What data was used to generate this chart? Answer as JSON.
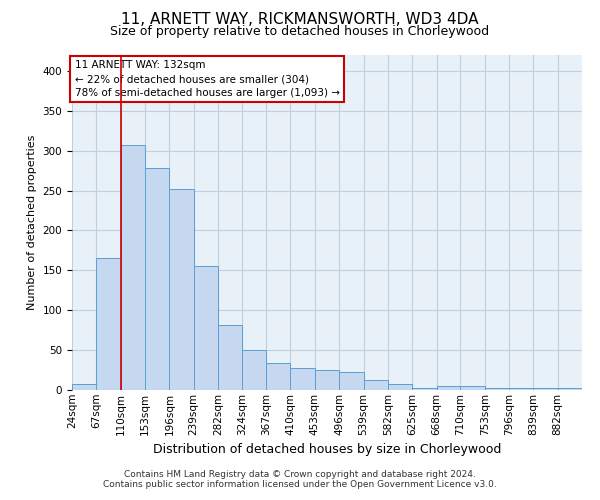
{
  "title": "11, ARNETT WAY, RICKMANSWORTH, WD3 4DA",
  "subtitle": "Size of property relative to detached houses in Chorleywood",
  "xlabel": "Distribution of detached houses by size in Chorleywood",
  "ylabel": "Number of detached properties",
  "footer_line1": "Contains HM Land Registry data © Crown copyright and database right 2024.",
  "footer_line2": "Contains public sector information licensed under the Open Government Licence v3.0.",
  "annotation_line1": "11 ARNETT WAY: 132sqm",
  "annotation_line2": "← 22% of detached houses are smaller (304)",
  "annotation_line3": "78% of semi-detached houses are larger (1,093) →",
  "bar_color": "#c5d8f0",
  "bar_edge_color": "#5a9fd4",
  "grid_color": "#c0d0e0",
  "background_color": "#e8f0f8",
  "red_line_color": "#cc0000",
  "red_line_x": 110,
  "categories": [
    "24sqm",
    "67sqm",
    "110sqm",
    "153sqm",
    "196sqm",
    "239sqm",
    "282sqm",
    "324sqm",
    "367sqm",
    "410sqm",
    "453sqm",
    "496sqm",
    "539sqm",
    "582sqm",
    "625sqm",
    "668sqm",
    "710sqm",
    "753sqm",
    "796sqm",
    "839sqm",
    "882sqm"
  ],
  "bin_starts": [
    24,
    67,
    110,
    153,
    196,
    239,
    282,
    324,
    367,
    410,
    453,
    496,
    539,
    582,
    625,
    668,
    710,
    753,
    796,
    839,
    882
  ],
  "bin_width": 43,
  "values": [
    8,
    165,
    307,
    278,
    252,
    156,
    82,
    50,
    34,
    27,
    25,
    22,
    13,
    8,
    2,
    5,
    5,
    3,
    3,
    2,
    3
  ],
  "ylim": [
    0,
    420
  ],
  "yticks": [
    0,
    50,
    100,
    150,
    200,
    250,
    300,
    350,
    400
  ],
  "title_fontsize": 11,
  "subtitle_fontsize": 9,
  "ylabel_fontsize": 8,
  "xlabel_fontsize": 9,
  "tick_fontsize": 7.5,
  "annotation_fontsize": 7.5,
  "footer_fontsize": 6.5
}
